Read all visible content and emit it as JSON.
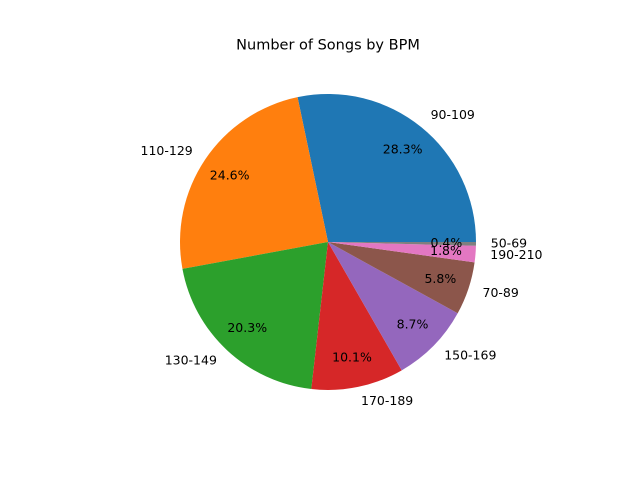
{
  "chart_data": {
    "type": "pie",
    "title": "Number of Songs by BPM",
    "start_angle_deg": 0,
    "direction": "counterclockwise",
    "legend": "none",
    "slices": [
      {
        "label": "90-109",
        "value": 28.3,
        "pct_label": "28.3%",
        "color": "#1f77b4"
      },
      {
        "label": "110-129",
        "value": 24.6,
        "pct_label": "24.6%",
        "color": "#ff7f0e"
      },
      {
        "label": "130-149",
        "value": 20.3,
        "pct_label": "20.3%",
        "color": "#2ca02c"
      },
      {
        "label": "170-189",
        "value": 10.1,
        "pct_label": "10.1%",
        "color": "#d62728"
      },
      {
        "label": "150-169",
        "value": 8.7,
        "pct_label": "8.7%",
        "color": "#9467bd"
      },
      {
        "label": "70-89",
        "value": 5.8,
        "pct_label": "5.8%",
        "color": "#8c564b"
      },
      {
        "label": "190-210",
        "value": 1.8,
        "pct_label": "1.8%",
        "color": "#e377c2"
      },
      {
        "label": "50-69",
        "value": 0.4,
        "pct_label": "0.4%",
        "color": "#7f7f7f"
      }
    ]
  }
}
